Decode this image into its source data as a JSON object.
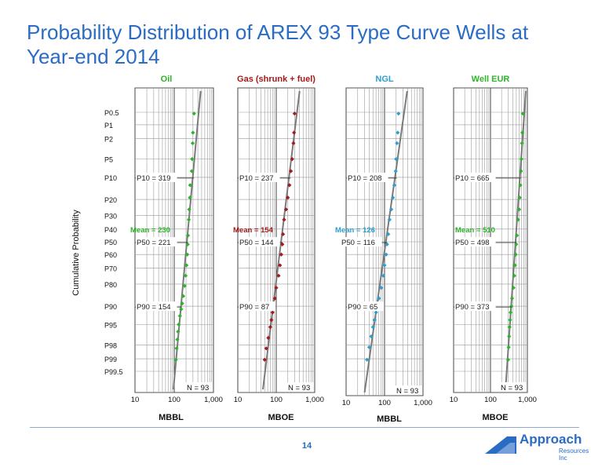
{
  "title": "Probability Distribution of AREX 93 Type Curve Wells at Year-end 2014",
  "page_number": "14",
  "logo": {
    "name": "Approach",
    "subtitle": "Resources Inc"
  },
  "colors": {
    "title": "#2a6cc4",
    "oil": "#2db52a",
    "gas": "#a31b1b",
    "ngl": "#2a9fd0",
    "eur": "#2db52a",
    "trend": "#7a7a7a",
    "grid": "#9a9a9a"
  },
  "chart_data": {
    "type": "scatter",
    "y_axis": {
      "label": "Cumulative Probability",
      "scale": "probability",
      "ticks": [
        "P0.5",
        "P1",
        "P2",
        "P5",
        "P10",
        "P20",
        "P30",
        "P40",
        "P50",
        "P60",
        "P70",
        "P80",
        "P90",
        "P95",
        "P98",
        "P99",
        "P99.5"
      ],
      "tick_values": [
        0.5,
        1,
        2,
        5,
        10,
        20,
        30,
        40,
        50,
        60,
        70,
        80,
        90,
        95,
        98,
        99,
        99.5
      ]
    },
    "x_axis": {
      "scale": "log",
      "ticks": [
        "10",
        "100",
        "1,000"
      ],
      "tick_values": [
        10,
        100,
        1000
      ]
    },
    "grid": true,
    "panels": [
      {
        "name": "Oil",
        "unit": "MBBL",
        "color": "#2db52a",
        "n_label": "N = 93",
        "stats": [
          {
            "key": "P10",
            "label": "P10 = 319",
            "p": 10,
            "value": 319
          },
          {
            "key": "Mean",
            "label": "Mean = 230",
            "p": 40,
            "value": 230
          },
          {
            "key": "P50",
            "label": "P50 = 221",
            "p": 50,
            "value": 221
          },
          {
            "key": "P90",
            "label": "P90 = 154",
            "p": 90,
            "value": 154
          }
        ],
        "points": [
          [
            320,
            0.54
          ],
          [
            300,
            1.5
          ],
          [
            295,
            2.5
          ],
          [
            285,
            5
          ],
          [
            280,
            8
          ],
          [
            255,
            13
          ],
          [
            250,
            19
          ],
          [
            240,
            26
          ],
          [
            235,
            33
          ],
          [
            225,
            45
          ],
          [
            221,
            52
          ],
          [
            215,
            60
          ],
          [
            205,
            68
          ],
          [
            195,
            75
          ],
          [
            185,
            81
          ],
          [
            170,
            86
          ],
          [
            160,
            89
          ],
          [
            150,
            91
          ],
          [
            140,
            93
          ],
          [
            130,
            95
          ],
          [
            125,
            96.3
          ],
          [
            120,
            97.4
          ],
          [
            115,
            98.3
          ],
          [
            110,
            99.05
          ]
        ]
      },
      {
        "name": "Gas (shrunk + fuel)",
        "unit": "MBOE",
        "color": "#a31b1b",
        "n_label": "N = 93",
        "stats": [
          {
            "key": "P10",
            "label": "P10 = 237",
            "p": 10,
            "value": 237
          },
          {
            "key": "Mean",
            "label": "Mean = 154",
            "p": 40,
            "value": 154
          },
          {
            "key": "P50",
            "label": "P50 = 144",
            "p": 50,
            "value": 144
          },
          {
            "key": "P90",
            "label": "P90 = 87",
            "p": 90,
            "value": 87
          }
        ],
        "points": [
          [
            300,
            0.54
          ],
          [
            290,
            1.5
          ],
          [
            280,
            2.5
          ],
          [
            260,
            5
          ],
          [
            240,
            8
          ],
          [
            220,
            13
          ],
          [
            200,
            19
          ],
          [
            180,
            26
          ],
          [
            160,
            33
          ],
          [
            150,
            44
          ],
          [
            144,
            52
          ],
          [
            135,
            60
          ],
          [
            125,
            68
          ],
          [
            115,
            75
          ],
          [
            100,
            82
          ],
          [
            92,
            87
          ],
          [
            88,
            90
          ],
          [
            80,
            92
          ],
          [
            75,
            94
          ],
          [
            70,
            95.5
          ],
          [
            62,
            97.2
          ],
          [
            55,
            98.3
          ],
          [
            50,
            99.05
          ]
        ]
      },
      {
        "name": "NGL",
        "unit": "MBBL",
        "color": "#2a9fd0",
        "n_label": "N = 93",
        "stats": [
          {
            "key": "P10",
            "label": "P10 = 208",
            "p": 10,
            "value": 208
          },
          {
            "key": "Mean",
            "label": "Mean = 126",
            "p": 40,
            "value": 126
          },
          {
            "key": "P50",
            "label": "P50 = 116",
            "p": 50,
            "value": 116
          },
          {
            "key": "P90",
            "label": "P90 = 65",
            "p": 90,
            "value": 65
          }
        ],
        "points": [
          [
            230,
            0.54
          ],
          [
            220,
            1.5
          ],
          [
            210,
            2.5
          ],
          [
            200,
            5
          ],
          [
            195,
            8
          ],
          [
            180,
            13
          ],
          [
            165,
            19
          ],
          [
            150,
            26
          ],
          [
            135,
            33
          ],
          [
            125,
            44
          ],
          [
            116,
            52
          ],
          [
            110,
            60
          ],
          [
            100,
            68
          ],
          [
            92,
            75
          ],
          [
            82,
            82
          ],
          [
            72,
            87
          ],
          [
            66,
            90
          ],
          [
            60,
            92
          ],
          [
            55,
            94
          ],
          [
            50,
            95.5
          ],
          [
            45,
            97
          ],
          [
            40,
            98.2
          ],
          [
            35,
            99.05
          ]
        ]
      },
      {
        "name": "Well EUR",
        "unit": "MBOE",
        "color": "#2db52a",
        "n_label": "N = 93",
        "stats": [
          {
            "key": "P10",
            "label": "P10 = 665",
            "p": 10,
            "value": 665
          },
          {
            "key": "Mean",
            "label": "Mean = 510",
            "p": 40,
            "value": 510
          },
          {
            "key": "P50",
            "label": "P50 = 498",
            "p": 50,
            "value": 498
          },
          {
            "key": "P90",
            "label": "P90 = 373",
            "p": 90,
            "value": 373
          }
        ],
        "points": [
          [
            750,
            0.54
          ],
          [
            730,
            1.5
          ],
          [
            710,
            2.5
          ],
          [
            690,
            5
          ],
          [
            670,
            8
          ],
          [
            640,
            13
          ],
          [
            620,
            19
          ],
          [
            600,
            26
          ],
          [
            560,
            33
          ],
          [
            520,
            45
          ],
          [
            498,
            52
          ],
          [
            480,
            60
          ],
          [
            460,
            68
          ],
          [
            440,
            75
          ],
          [
            420,
            82
          ],
          [
            385,
            87
          ],
          [
            370,
            90
          ],
          [
            350,
            92
          ],
          [
            340,
            94
          ],
          [
            330,
            95.5
          ],
          [
            320,
            97
          ],
          [
            310,
            98.2
          ],
          [
            300,
            99.05
          ]
        ]
      }
    ]
  }
}
